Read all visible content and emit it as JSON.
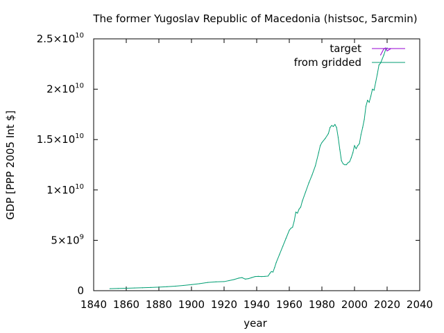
{
  "chart_data": {
    "type": "line",
    "title": "The former Yugoslav Republic of Macedonia (histsoc, 5arcmin)",
    "xlabel": "year",
    "ylabel": "GDP [PPP 2005 Int $]",
    "xlim": [
      1840,
      2040
    ],
    "ylim": [
      0,
      25000000000
    ],
    "grid": false,
    "legend_position": "top-right",
    "x_ticks": [
      "1840",
      "1860",
      "1880",
      "1900",
      "1920",
      "1940",
      "1960",
      "1980",
      "2000",
      "2020",
      "2040"
    ],
    "y_ticks": [
      {
        "value": 0,
        "mantissa": "0",
        "exponent": ""
      },
      {
        "value": 5000000000,
        "mantissa": "5×10",
        "exponent": "9"
      },
      {
        "value": 10000000000,
        "mantissa": "1×10",
        "exponent": "10"
      },
      {
        "value": 15000000000,
        "mantissa": "1.5×10",
        "exponent": "10"
      },
      {
        "value": 20000000000,
        "mantissa": "2×10",
        "exponent": "10"
      },
      {
        "value": 25000000000,
        "mantissa": "2.5×10",
        "exponent": "10"
      }
    ],
    "series": [
      {
        "name": "target",
        "color": "#9400d3",
        "x": [
          2016,
          2017,
          2018,
          2019,
          2020,
          2021,
          2022
        ],
        "y": [
          23400000000,
          23700000000,
          24000000000,
          24100000000,
          23800000000,
          23900000000,
          24000000000
        ]
      },
      {
        "name": "from gridded",
        "color": "#009e73",
        "x": [
          1850,
          1855,
          1860,
          1865,
          1870,
          1875,
          1880,
          1885,
          1890,
          1895,
          1900,
          1905,
          1910,
          1915,
          1920,
          1923,
          1926,
          1929,
          1931,
          1933,
          1935,
          1937,
          1939,
          1941,
          1943,
          1945,
          1947,
          1948,
          1949,
          1950,
          1951,
          1952,
          1954,
          1956,
          1958,
          1960,
          1961,
          1962,
          1963,
          1964,
          1965,
          1966,
          1967,
          1968,
          1970,
          1972,
          1974,
          1976,
          1978,
          1979,
          1980,
          1982,
          1984,
          1985,
          1986,
          1987,
          1988,
          1989,
          1990,
          1991,
          1992,
          1993,
          1994,
          1995,
          1996,
          1997,
          1998,
          1999,
          2000,
          2001,
          2002,
          2003,
          2004,
          2005,
          2006,
          2007,
          2008,
          2009,
          2010,
          2011,
          2012,
          2013,
          2014,
          2015,
          2016,
          2017,
          2018,
          2019,
          2020
        ],
        "y": [
          200000000,
          220000000,
          240000000,
          270000000,
          290000000,
          320000000,
          350000000,
          400000000,
          450000000,
          520000000,
          600000000,
          700000000,
          820000000,
          880000000,
          900000000,
          1000000000,
          1100000000,
          1250000000,
          1300000000,
          1150000000,
          1200000000,
          1300000000,
          1400000000,
          1420000000,
          1400000000,
          1420000000,
          1450000000,
          1700000000,
          1900000000,
          1850000000,
          2300000000,
          2800000000,
          3600000000,
          4400000000,
          5200000000,
          6000000000,
          6200000000,
          6300000000,
          6900000000,
          7800000000,
          7700000000,
          8100000000,
          8300000000,
          8900000000,
          9800000000,
          10700000000,
          11500000000,
          12400000000,
          13700000000,
          14400000000,
          14700000000,
          15100000000,
          15600000000,
          16200000000,
          16400000000,
          16300000000,
          16500000000,
          16200000000,
          15200000000,
          14000000000,
          12900000000,
          12600000000,
          12500000000,
          12500000000,
          12700000000,
          12800000000,
          13200000000,
          13700000000,
          14400000000,
          14100000000,
          14400000000,
          14600000000,
          15500000000,
          16200000000,
          17000000000,
          18300000000,
          18900000000,
          18700000000,
          19300000000,
          20000000000,
          19900000000,
          20700000000,
          21500000000,
          22400000000,
          22600000000,
          23000000000,
          23400000000,
          23900000000,
          24100000000
        ]
      }
    ]
  }
}
